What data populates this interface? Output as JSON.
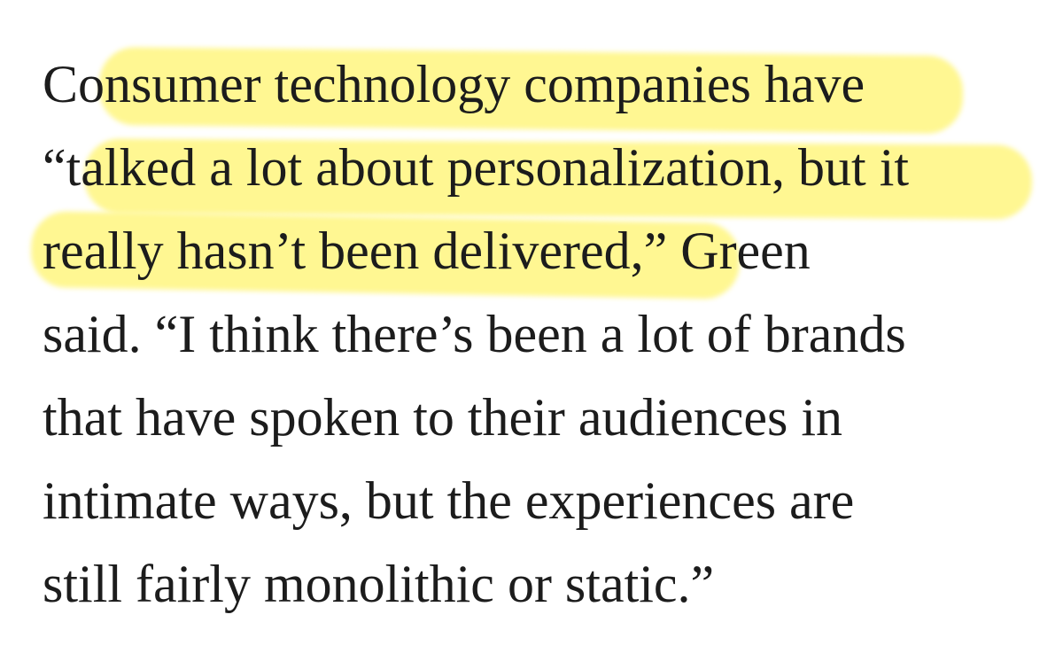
{
  "paragraph": {
    "lines": [
      "Consumer technology companies have",
      "“talked a lot about personalization, but it",
      "really hasn’t been delivered,” Green",
      "said. “I think there’s been a lot of brands",
      "that have spoken to their audiences in",
      "intimate ways, but the experiences are",
      "still fairly monolithic or static.”"
    ]
  }
}
